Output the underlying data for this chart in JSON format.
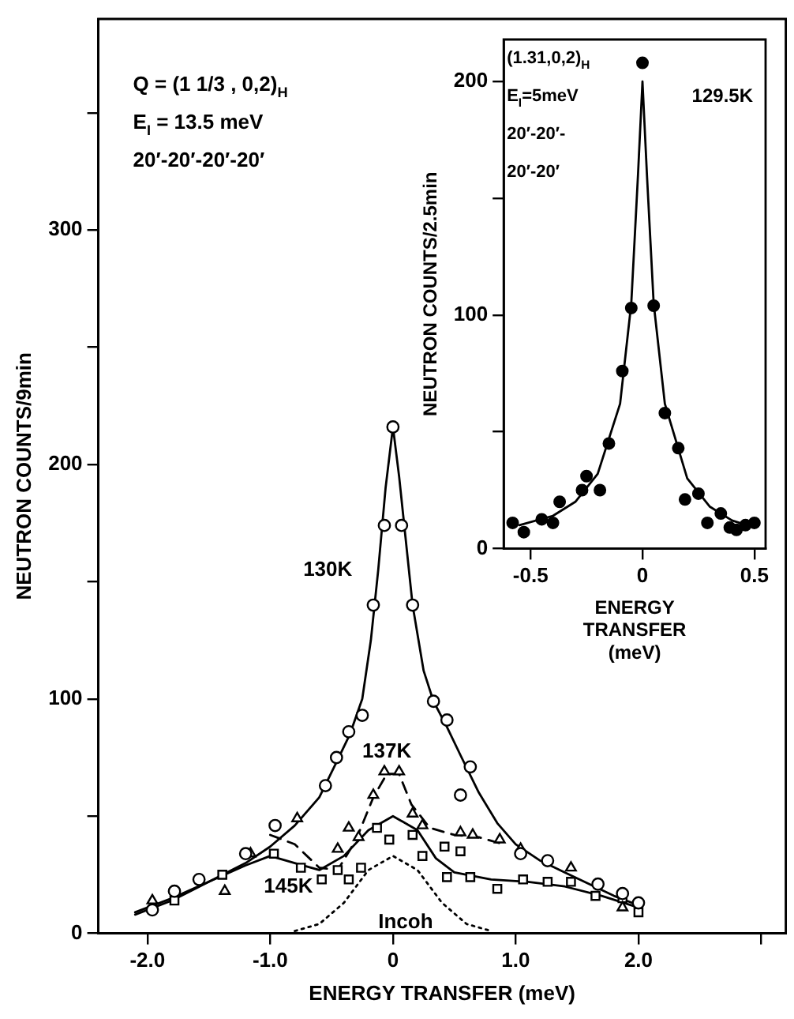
{
  "chart_data": [
    {
      "type": "scatter",
      "xlabel": "ENERGY TRANSFER (meV)",
      "ylabel": "NEUTRON COUNTS/9min",
      "xlim": [
        -2.4,
        3.2
      ],
      "xticks": [
        {
          "value": -2,
          "label": "-2.0"
        },
        {
          "value": -1,
          "label": "-1.0"
        },
        0,
        {
          "value": 1,
          "label": "1.0"
        },
        {
          "value": 2,
          "label": "2.0"
        },
        {
          "value": 3,
          "label": null
        }
      ],
      "ylim": [
        0,
        390
      ],
      "yticks": [
        0,
        {
          "value": 50,
          "label": null
        },
        100,
        {
          "value": 150,
          "label": null
        },
        200,
        {
          "value": 250,
          "label": null
        },
        300,
        {
          "value": 350,
          "label": null
        }
      ],
      "grid": false,
      "legend": false,
      "annotations": [
        "Q = (1 1/3 , 0,2)$_{H}$",
        "E$_{I}$ = 13.5 meV",
        "20′-20′-20′-20′"
      ],
      "series": [
        {
          "type": "scatter",
          "marker": "circle",
          "color": "#000000",
          "x": [
            -1.96,
            -1.78,
            -1.58,
            -1.2,
            -0.96,
            -0.55,
            -0.46,
            -0.36,
            -0.25,
            -0.16,
            -0.07,
            0.0,
            0.07,
            0.16,
            0.33,
            0.44,
            0.55,
            0.63,
            1.04,
            1.26,
            1.67,
            1.87,
            2.0
          ],
          "values": [
            10,
            18,
            23,
            34,
            46,
            63,
            75,
            86,
            93,
            140,
            174,
            216,
            174,
            140,
            99,
            91,
            59,
            71,
            34,
            31,
            21,
            17,
            13
          ]
        },
        {
          "type": "scatter",
          "marker": "triangle",
          "color": "#000000",
          "x": [
            -1.96,
            -1.37,
            -1.16,
            -0.78,
            -0.45,
            -0.36,
            -0.28,
            -0.16,
            -0.07,
            0.05,
            0.16,
            0.24,
            0.55,
            0.65,
            0.87,
            1.04,
            1.45,
            1.87
          ],
          "values": [
            14,
            18,
            34,
            49,
            36,
            45,
            41,
            59,
            69,
            69,
            51,
            46,
            43,
            42,
            40,
            36,
            28,
            11
          ]
        },
        {
          "type": "scatter",
          "marker": "square",
          "color": "#000000",
          "x": [
            -1.78,
            -1.39,
            -0.97,
            -0.75,
            -0.58,
            -0.45,
            -0.36,
            -0.26,
            -0.13,
            -0.03,
            0.16,
            0.24,
            0.42,
            0.44,
            0.55,
            0.63,
            0.85,
            1.06,
            1.26,
            1.45,
            1.65,
            1.87,
            2.0
          ],
          "values": [
            14,
            25,
            34,
            28,
            23,
            27,
            23,
            28,
            45,
            40,
            42,
            33,
            37,
            24,
            35,
            24,
            19,
            23,
            22,
            22,
            16,
            15,
            9
          ]
        },
        {
          "type": "line",
          "name": "130K",
          "line_style": "solid",
          "color": "#000000",
          "x": [
            -2.1,
            -1.8,
            -1.5,
            -1.2,
            -1.0,
            -0.8,
            -0.6,
            -0.46,
            -0.35,
            -0.25,
            -0.18,
            -0.12,
            -0.06,
            0,
            0.05,
            0.1,
            0.16,
            0.25,
            0.33,
            0.44,
            0.55,
            0.7,
            0.85,
            1.0,
            1.2,
            1.4,
            1.6,
            1.8,
            2.0
          ],
          "values": [
            8,
            14,
            22,
            30,
            37,
            46,
            58,
            73,
            85,
            100,
            125,
            155,
            190,
            216,
            195,
            170,
            140,
            112,
            99,
            88,
            76,
            60,
            47,
            38,
            31,
            26,
            21,
            16,
            12
          ]
        },
        {
          "type": "line",
          "name": "137K",
          "line_style": "dashed",
          "color": "#000000",
          "x": [
            -1.0,
            -0.8,
            -0.6,
            -0.45,
            -0.3,
            -0.16,
            -0.05,
            0.05,
            0.15,
            0.3,
            0.5,
            0.7,
            0.9
          ],
          "values": [
            42,
            38,
            28,
            27,
            40,
            58,
            68,
            68,
            55,
            45,
            42,
            41,
            38
          ]
        },
        {
          "type": "line",
          "name": "145K",
          "line_style": "solid",
          "color": "#000000",
          "x": [
            -2.1,
            -1.8,
            -1.5,
            -1.2,
            -1.0,
            -0.8,
            -0.6,
            -0.4,
            -0.2,
            0,
            0.2,
            0.35,
            0.5,
            0.8,
            1.1,
            1.4,
            1.7,
            2.0
          ],
          "values": [
            9,
            15,
            22,
            29,
            33,
            30,
            27,
            33,
            44,
            50,
            44,
            32,
            26,
            23,
            22,
            20,
            16,
            11
          ]
        },
        {
          "type": "line",
          "name": "Incoh",
          "line_style": "dotted",
          "color": "#000000",
          "x": [
            -0.8,
            -0.6,
            -0.4,
            -0.2,
            0,
            0.2,
            0.4,
            0.6,
            0.8
          ],
          "values": [
            1,
            4,
            13,
            27,
            33,
            27,
            13,
            4,
            1
          ]
        }
      ]
    },
    {
      "type": "scatter",
      "xlabel": "ENERGY TRANSFER (meV)",
      "ylabel": "NEUTRON COUNTS/2.5min",
      "xlim": [
        -0.62,
        0.55
      ],
      "xticks": [
        -0.5,
        0,
        0.5
      ],
      "ylim": [
        0,
        218
      ],
      "yticks": [
        0,
        {
          "value": 50,
          "label": null
        },
        100,
        {
          "value": 150,
          "label": null
        },
        200
      ],
      "grid": false,
      "legend": false,
      "annotations": [
        "(1.31,0,2)$_{H}$",
        "E$_{I}$=5meV",
        "20′-20′-",
        "20′-20′"
      ],
      "series": [
        {
          "type": "scatter",
          "name": "129.5K",
          "marker": "circle",
          "color": "#000000",
          "x": [
            -0.58,
            -0.53,
            -0.45,
            -0.4,
            -0.37,
            -0.27,
            -0.25,
            -0.19,
            -0.15,
            -0.09,
            -0.05,
            0,
            0.05,
            0.1,
            0.16,
            0.19,
            0.25,
            0.29,
            0.35,
            0.39,
            0.42,
            0.46,
            0.5
          ],
          "values": [
            11,
            7,
            12.5,
            11,
            20,
            25,
            31,
            25,
            45,
            76,
            103,
            208,
            104,
            58,
            43,
            21,
            23.5,
            11,
            15,
            9,
            8,
            10,
            11
          ]
        },
        {
          "type": "line",
          "line_style": "solid",
          "color": "#000000",
          "x": [
            -0.55,
            -0.4,
            -0.3,
            -0.2,
            -0.1,
            -0.05,
            -0.02,
            0,
            0.02,
            0.05,
            0.1,
            0.2,
            0.3,
            0.4,
            0.5
          ],
          "values": [
            10,
            14,
            20,
            32,
            62,
            105,
            160,
            200,
            160,
            105,
            62,
            30,
            18,
            12,
            9
          ]
        }
      ]
    }
  ]
}
